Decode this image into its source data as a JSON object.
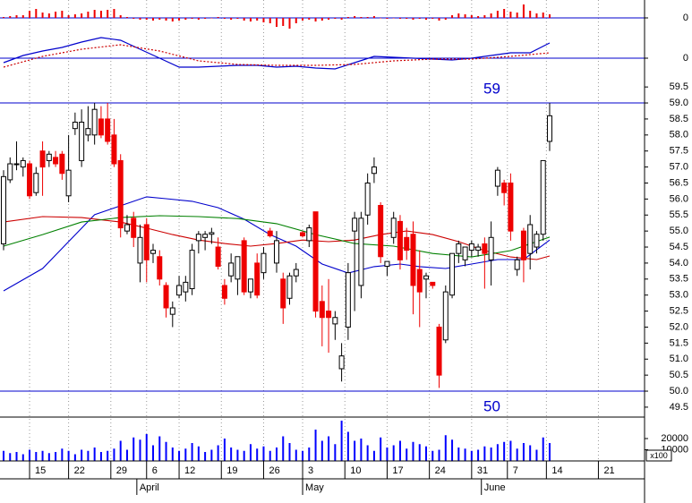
{
  "chart_data": [
    {
      "type": "bar",
      "color": "#ee0000",
      "xlim": [
        -0.55,
        98.6
      ],
      "ylim": [
        -2,
        2
      ],
      "yticks": [
        0
      ],
      "x": [
        0,
        1,
        2,
        3,
        4,
        5,
        6,
        7,
        8,
        9,
        10,
        11,
        12,
        13,
        14,
        15,
        16,
        17,
        18,
        19,
        20,
        21,
        22,
        23,
        24,
        25,
        26,
        27,
        28,
        29,
        30,
        31,
        32,
        33,
        34,
        35,
        36,
        37,
        38,
        39,
        40,
        41,
        42,
        43,
        44,
        45,
        46,
        47,
        48,
        49,
        50,
        51,
        52,
        53,
        54,
        55,
        56,
        57,
        58,
        59,
        60,
        61,
        62,
        63,
        64,
        65,
        66,
        67,
        68,
        69,
        70,
        71,
        72,
        73,
        74,
        75,
        76,
        77,
        78,
        79,
        80,
        81,
        82,
        83,
        84
      ],
      "values": [
        0.1,
        0.2,
        0.3,
        0.3,
        0.8,
        1.0,
        0.6,
        0.5,
        0.7,
        0.8,
        0.3,
        0.4,
        0.5,
        0.7,
        0.9,
        0.8,
        0.9,
        1.0,
        0.3,
        0.1,
        -0.1,
        -0.2,
        -0.2,
        -0.3,
        -0.2,
        -0.3,
        -0.4,
        -0.3,
        -0.2,
        -0.1,
        -0.2,
        -0.1,
        0,
        0.1,
        -0.1,
        -0.2,
        -0.1,
        -0.3,
        -0.4,
        -0.3,
        -0.5,
        -0.6,
        -1.0,
        -0.9,
        -1.2,
        -0.6,
        -0.3,
        -0.2,
        -0.4,
        -0.3,
        -0.2,
        -0.1,
        -0.2,
        0.1,
        0.2,
        0.1,
        0.1,
        0.2,
        0,
        -0.1,
        0,
        -0.1,
        -0.1,
        -0.2,
        -0.1,
        -0.2,
        -0.1,
        -0.3,
        -0.2,
        0.3,
        0.5,
        0.4,
        0.3,
        0.2,
        0.3,
        0.5,
        0.8,
        1.0,
        0.7,
        0.6,
        1.5,
        0.8,
        0.5,
        0.6,
        0.4
      ]
    },
    {
      "type": "line",
      "xlim": [
        -0.55,
        98.6
      ],
      "ylim": [
        -2.5,
        2.5
      ],
      "yticks": [
        0
      ],
      "series": [
        {
          "color": "#0000cc",
          "style": "solid",
          "x": [
            0,
            3,
            6,
            9,
            12,
            15,
            18,
            21,
            24,
            27,
            30,
            33,
            36,
            39,
            42,
            45,
            48,
            51,
            54,
            57,
            60,
            63,
            66,
            69,
            72,
            75,
            78,
            81,
            84
          ],
          "values": [
            -0.5,
            0.3,
            0.8,
            1.2,
            1.8,
            2.3,
            2.0,
            1.0,
            0.0,
            -1.0,
            -1.0,
            -0.9,
            -0.8,
            -0.8,
            -1.0,
            -0.9,
            -1.1,
            -1.2,
            -0.5,
            0.2,
            0.1,
            0.0,
            -0.1,
            -0.2,
            0.0,
            0.3,
            0.6,
            0.6,
            1.7
          ]
        },
        {
          "color": "#cc0000",
          "style": "dotted",
          "x": [
            0,
            6,
            12,
            18,
            24,
            30,
            36,
            42,
            48,
            54,
            60,
            66,
            72,
            78,
            84
          ],
          "values": [
            -1.0,
            0.2,
            1.0,
            1.5,
            0.8,
            -0.3,
            -0.7,
            -0.8,
            -0.8,
            -0.7,
            -0.3,
            -0.1,
            -0.1,
            0.2,
            0.6
          ]
        }
      ]
    },
    {
      "type": "candlestick",
      "xlim": [
        -0.55,
        98.6
      ],
      "ylim": [
        49.19,
        59.7
      ],
      "yticks": [
        49.5,
        {
          "value": 50,
          "label": "50.0"
        },
        50.5,
        {
          "value": 51,
          "label": "51.0"
        },
        51.5,
        {
          "value": 52,
          "label": "52.0"
        },
        52.5,
        {
          "value": 53,
          "label": "53.0"
        },
        53.5,
        {
          "value": 54,
          "label": "54.0"
        },
        54.5,
        {
          "value": 55,
          "label": "55.0"
        },
        55.5,
        {
          "value": 56,
          "label": "56.0"
        },
        56.5,
        {
          "value": 57,
          "label": "57.0"
        },
        57.5,
        {
          "value": 58,
          "label": "58.0"
        },
        58.5,
        {
          "value": 59,
          "label": "59.0"
        },
        59.5
      ],
      "levels": [
        59,
        50
      ],
      "level_color": "#0000cc",
      "up_color": "#000000",
      "down_color": "#ee0000",
      "x": [
        0,
        1,
        2,
        3,
        4,
        5,
        6,
        7,
        8,
        9,
        10,
        11,
        12,
        13,
        14,
        15,
        16,
        17,
        18,
        19,
        20,
        21,
        22,
        23,
        24,
        25,
        26,
        27,
        28,
        29,
        30,
        31,
        32,
        33,
        34,
        35,
        36,
        37,
        38,
        39,
        40,
        41,
        42,
        43,
        44,
        45,
        46,
        47,
        48,
        49,
        50,
        51,
        52,
        53,
        54,
        55,
        56,
        57,
        58,
        59,
        60,
        61,
        62,
        63,
        64,
        65,
        66,
        67,
        68,
        69,
        70,
        71,
        72,
        73,
        74,
        75,
        76,
        77,
        78,
        79,
        80,
        81,
        82,
        83,
        84
      ],
      "open": [
        54.6,
        56.6,
        57.1,
        57.0,
        57.1,
        56.2,
        57.5,
        57.2,
        57.3,
        57.4,
        56.1,
        58.2,
        57.2,
        58.0,
        58.0,
        58.5,
        58.5,
        58.0,
        57.2,
        55.0,
        55.4,
        54.0,
        55.2,
        54.3,
        54.2,
        53.3,
        52.4,
        53.0,
        53.1,
        53.2,
        54.7,
        54.8,
        54.9,
        54.5,
        53.3,
        53.6,
        53.5,
        54.7,
        53.1,
        54.0,
        53.7,
        55.0,
        54.0,
        53.5,
        52.9,
        53.6,
        54.95,
        54.7,
        55.6,
        52.8,
        52.5,
        52.1,
        50.7,
        52.0,
        55.0,
        53.3,
        55.5,
        56.8,
        55.8,
        53.9,
        54.8,
        55.3,
        54.8,
        54.9,
        53.8,
        53.5,
        53.4,
        52.0,
        51.6,
        53.0,
        54.3,
        54.1,
        54.4,
        54.4,
        54.6,
        54.1,
        56.4,
        56.5,
        56.5,
        53.8,
        55.0,
        54.3,
        54.5,
        54.9,
        57.8
      ],
      "high": [
        56.9,
        57.3,
        57.8,
        57.3,
        57.2,
        57.0,
        57.8,
        57.5,
        57.5,
        57.5,
        58.0,
        58.7,
        58.8,
        58.9,
        59.0,
        58.9,
        59.0,
        58.5,
        57.4,
        55.5,
        55.6,
        55.2,
        55.4,
        54.6,
        54.4,
        53.4,
        52.8,
        53.6,
        53.6,
        54.6,
        55.0,
        55.0,
        55.1,
        54.8,
        53.5,
        54.3,
        54.2,
        54.8,
        53.5,
        54.3,
        54.5,
        55.1,
        55.0,
        53.7,
        53.7,
        54.0,
        55.0,
        55.2,
        55.6,
        53.3,
        53.5,
        52.5,
        51.5,
        54.0,
        55.6,
        55.6,
        56.8,
        57.3,
        55.9,
        54.0,
        55.6,
        55.5,
        55.1,
        55.3,
        54.4,
        53.7,
        53.4,
        52.1,
        53.3,
        54.3,
        54.7,
        54.5,
        54.7,
        54.6,
        54.8,
        55.3,
        57.0,
        56.6,
        56.8,
        54.2,
        55.1,
        55.5,
        55.0,
        57.2,
        59.0
      ],
      "low": [
        54.4,
        56.5,
        56.9,
        56.7,
        56.0,
        56.1,
        56.1,
        57.0,
        57.0,
        56.6,
        55.9,
        58.0,
        57.0,
        57.8,
        57.7,
        57.9,
        57.7,
        57.0,
        54.8,
        54.9,
        54.5,
        53.4,
        53.4,
        54.0,
        53.3,
        52.3,
        52.0,
        52.9,
        52.8,
        53.0,
        54.3,
        54.4,
        54.6,
        53.8,
        52.7,
        53.4,
        53.0,
        53.0,
        52.9,
        52.9,
        53.5,
        54.8,
        53.7,
        52.1,
        52.7,
        53.4,
        54.8,
        54.5,
        52.3,
        51.4,
        51.2,
        51.6,
        50.3,
        51.6,
        52.5,
        52.9,
        55.2,
        56.5,
        54.0,
        53.6,
        54.6,
        53.8,
        54.1,
        52.4,
        52.0,
        52.9,
        53.2,
        50.1,
        51.5,
        52.9,
        54.0,
        53.9,
        54.2,
        54.2,
        53.2,
        53.3,
        56.1,
        55.8,
        54.7,
        53.6,
        53.4,
        53.8,
        54.3,
        54.7,
        57.5
      ],
      "close": [
        56.7,
        57.1,
        57.1,
        57.2,
        56.1,
        56.8,
        57.0,
        57.4,
        57.1,
        56.8,
        56.9,
        58.4,
        58.4,
        58.2,
        58.8,
        58.0,
        57.8,
        57.1,
        55.1,
        55.2,
        54.8,
        54.8,
        54.1,
        54.4,
        53.5,
        52.6,
        52.6,
        53.3,
        53.4,
        54.4,
        54.9,
        54.9,
        54.95,
        53.9,
        52.9,
        54.0,
        54.2,
        53.1,
        53.5,
        53.0,
        54.3,
        54.85,
        54.7,
        52.6,
        53.6,
        53.8,
        54.85,
        55.1,
        52.5,
        52.3,
        52.3,
        52.3,
        51.1,
        53.7,
        55.4,
        55.4,
        56.5,
        57.0,
        54.2,
        54.05,
        55.4,
        54.1,
        54.4,
        53.3,
        53.1,
        53.6,
        53.3,
        50.5,
        53.1,
        54.3,
        54.6,
        54.5,
        54.6,
        54.5,
        54.3,
        54.8,
        56.9,
        56.2,
        55.0,
        54.1,
        54.1,
        55.2,
        54.9,
        57.2,
        58.6
      ],
      "lines": [
        {
          "color": "#0000cc",
          "x": [
            0,
            6,
            10,
            14,
            18,
            22,
            25,
            29,
            33,
            37,
            41,
            45,
            49,
            53,
            57,
            61,
            64,
            68,
            72,
            76,
            80,
            84
          ],
          "values": [
            53.13,
            53.83,
            54.67,
            55.51,
            55.79,
            56.07,
            56.01,
            55.93,
            55.73,
            55.37,
            54.89,
            54.53,
            53.97,
            53.69,
            53.89,
            53.97,
            53.89,
            53.83,
            53.97,
            54.11,
            54.11,
            54.72
          ]
        },
        {
          "color": "#cc0000",
          "x": [
            0,
            6,
            12,
            18,
            22,
            26,
            30,
            34,
            38,
            42,
            46,
            50,
            54,
            58,
            62,
            66,
            70,
            74,
            78,
            82,
            84
          ],
          "values": [
            55.28,
            55.45,
            55.42,
            55.28,
            55.09,
            54.89,
            54.72,
            54.61,
            54.53,
            54.61,
            54.72,
            54.67,
            54.72,
            54.89,
            55.0,
            54.89,
            54.67,
            54.39,
            54.19,
            54.11,
            54.22
          ]
        },
        {
          "color": "#008000",
          "x": [
            0,
            6,
            12,
            18,
            24,
            30,
            36,
            42,
            48,
            54,
            60,
            66,
            72,
            78,
            84
          ],
          "values": [
            54.53,
            54.89,
            55.28,
            55.42,
            55.48,
            55.45,
            55.39,
            55.23,
            54.89,
            54.61,
            54.53,
            54.3,
            54.19,
            54.39,
            54.81
          ]
        }
      ]
    },
    {
      "type": "bar",
      "color": "#0000ff",
      "xlim": [
        -0.55,
        98.6
      ],
      "ylim": [
        0,
        39200
      ],
      "yticks": [
        10000,
        20000
      ],
      "unit_label": "x100",
      "x": [
        0,
        1,
        2,
        3,
        4,
        5,
        6,
        7,
        8,
        9,
        10,
        11,
        12,
        13,
        14,
        15,
        16,
        17,
        18,
        19,
        20,
        21,
        22,
        23,
        24,
        25,
        26,
        27,
        28,
        29,
        30,
        31,
        32,
        33,
        34,
        35,
        36,
        37,
        38,
        39,
        40,
        41,
        42,
        43,
        44,
        45,
        46,
        47,
        48,
        49,
        50,
        51,
        52,
        53,
        54,
        55,
        56,
        57,
        58,
        59,
        60,
        61,
        62,
        63,
        64,
        65,
        66,
        67,
        68,
        69,
        70,
        71,
        72,
        73,
        74,
        75,
        76,
        77,
        78,
        79,
        80,
        81,
        82,
        83,
        84
      ],
      "values": [
        9000,
        7000,
        8000,
        6000,
        10000,
        8000,
        9000,
        7000,
        8000,
        11000,
        9000,
        6000,
        10000,
        9000,
        12000,
        8000,
        9000,
        11000,
        18000,
        10000,
        21000,
        19000,
        24000,
        14000,
        22000,
        17000,
        12000,
        9000,
        11000,
        16000,
        13000,
        8000,
        10000,
        14000,
        20000,
        12000,
        10000,
        9000,
        15000,
        11000,
        13000,
        9000,
        12000,
        22000,
        16000,
        10000,
        9000,
        12000,
        28000,
        18000,
        22000,
        15000,
        36000,
        26000,
        18000,
        20000,
        14000,
        9000,
        21000,
        12000,
        14000,
        18000,
        11000,
        17000,
        15000,
        13000,
        9000,
        10000,
        23000,
        19000,
        12000,
        11000,
        9000,
        10000,
        13000,
        12000,
        15000,
        17000,
        18000,
        11000,
        16000,
        14000,
        10000,
        21000,
        16000
      ],
      "xticks": [
        {
          "value": 4,
          "label": "15"
        },
        {
          "value": 10,
          "label": "22"
        },
        {
          "value": 16.5,
          "label": "29"
        },
        {
          "value": 22,
          "label": "6"
        },
        {
          "value": 27,
          "label": "12"
        },
        {
          "value": 33.5,
          "label": "19"
        },
        {
          "value": 40,
          "label": "26"
        },
        {
          "value": 46,
          "label": "3"
        },
        {
          "value": 52.5,
          "label": "10"
        },
        {
          "value": 59,
          "label": "17"
        },
        {
          "value": 65.5,
          "label": "24"
        },
        {
          "value": 72,
          "label": "31"
        },
        {
          "value": 77.5,
          "label": "7"
        },
        {
          "value": 83.5,
          "label": "14"
        },
        {
          "value": 91.5,
          "label": "21"
        }
      ],
      "month_ticks": [
        {
          "value": 20.5,
          "label": "April"
        },
        {
          "value": 46,
          "label": "May"
        },
        {
          "value": 73.5,
          "label": "June"
        }
      ]
    }
  ]
}
